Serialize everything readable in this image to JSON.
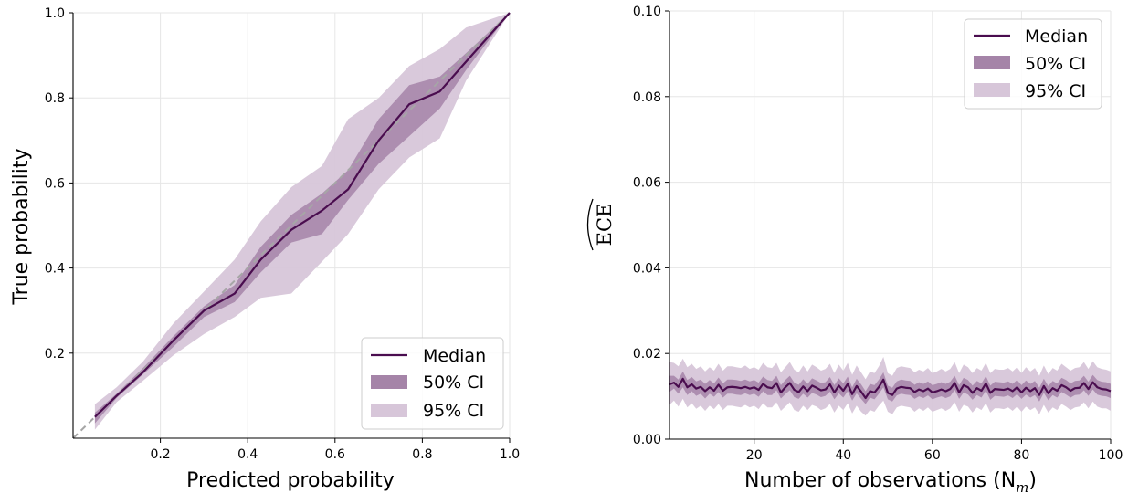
{
  "colors": {
    "median": "#4a0d4f",
    "ci50": "#a584a8",
    "ci95": "#d7c6d9",
    "diagonal": "#a6a6a6",
    "grid": "#e6e6e6"
  },
  "chart_data": [
    {
      "type": "line",
      "xlabel": "Predicted probability",
      "ylabel": "True probability",
      "xlim": [
        0.0,
        1.0
      ],
      "ylim": [
        0.0,
        1.0
      ],
      "xticks": [
        0.2,
        0.4,
        0.6,
        0.8,
        1.0
      ],
      "xtick_labels": [
        "0.2",
        "0.4",
        "0.6",
        "0.8",
        "1.0"
      ],
      "yticks": [
        0.2,
        0.4,
        0.6,
        0.8,
        1.0
      ],
      "ytick_labels": [
        "0.2",
        "0.4",
        "0.6",
        "0.8",
        "1.0"
      ],
      "grid": true,
      "legend_position": "bottom-right",
      "legend": [
        "Median",
        "50% CI",
        "95% CI"
      ],
      "diagonal": true,
      "x": [
        0.05,
        0.1,
        0.16,
        0.23,
        0.3,
        0.37,
        0.43,
        0.5,
        0.57,
        0.63,
        0.7,
        0.77,
        0.84,
        0.9,
        1.0
      ],
      "median": [
        0.05,
        0.1,
        0.155,
        0.23,
        0.3,
        0.34,
        0.42,
        0.49,
        0.535,
        0.585,
        0.7,
        0.785,
        0.815,
        0.885,
        1.0
      ],
      "ci50_lower": [
        0.035,
        0.095,
        0.15,
        0.215,
        0.285,
        0.32,
        0.39,
        0.46,
        0.48,
        0.56,
        0.645,
        0.71,
        0.775,
        0.865,
        1.0
      ],
      "ci50_upper": [
        0.06,
        0.105,
        0.165,
        0.24,
        0.31,
        0.36,
        0.45,
        0.525,
        0.575,
        0.63,
        0.75,
        0.83,
        0.85,
        0.905,
        1.0
      ],
      "ci95_lower": [
        0.02,
        0.085,
        0.135,
        0.195,
        0.245,
        0.285,
        0.33,
        0.34,
        0.415,
        0.48,
        0.585,
        0.66,
        0.705,
        0.84,
        1.0
      ],
      "ci95_upper": [
        0.08,
        0.12,
        0.18,
        0.27,
        0.345,
        0.42,
        0.51,
        0.59,
        0.64,
        0.75,
        0.8,
        0.875,
        0.915,
        0.965,
        1.0
      ]
    },
    {
      "type": "line",
      "xlabel": "Number of observations (N",
      "xlabel_sub": "m",
      "ylabel": "ECE",
      "xlim": [
        1,
        100
      ],
      "ylim": [
        0.0,
        0.1
      ],
      "xticks": [
        20,
        40,
        60,
        80,
        100
      ],
      "xtick_labels": [
        "20",
        "40",
        "60",
        "80",
        "100"
      ],
      "yticks": [
        0.0,
        0.02,
        0.04,
        0.06,
        0.08,
        0.1
      ],
      "ytick_labels": [
        "0.00",
        "0.02",
        "0.04",
        "0.06",
        "0.08",
        "0.10"
      ],
      "grid": true,
      "legend_position": "top-right",
      "legend": [
        "Median",
        "50% CI",
        "95% CI"
      ],
      "x_start": 1,
      "x_step": 1,
      "median": [
        0.0128,
        0.0132,
        0.0122,
        0.0141,
        0.0121,
        0.0128,
        0.0118,
        0.0122,
        0.0112,
        0.0121,
        0.0113,
        0.0127,
        0.0113,
        0.0121,
        0.0122,
        0.0121,
        0.0119,
        0.0122,
        0.0118,
        0.0121,
        0.0115,
        0.0129,
        0.0121,
        0.0119,
        0.0131,
        0.0109,
        0.0121,
        0.0131,
        0.0115,
        0.011,
        0.0123,
        0.0112,
        0.0125,
        0.012,
        0.0114,
        0.0116,
        0.0128,
        0.0109,
        0.0125,
        0.0113,
        0.0129,
        0.0105,
        0.0124,
        0.0111,
        0.0096,
        0.0112,
        0.0109,
        0.0122,
        0.0139,
        0.0108,
        0.0103,
        0.0118,
        0.0122,
        0.012,
        0.0119,
        0.011,
        0.0116,
        0.0112,
        0.0118,
        0.0109,
        0.0112,
        0.0116,
        0.0112,
        0.0117,
        0.0131,
        0.0109,
        0.0126,
        0.0121,
        0.0108,
        0.0119,
        0.0113,
        0.013,
        0.0108,
        0.0117,
        0.0116,
        0.0115,
        0.0118,
        0.0112,
        0.0121,
        0.0109,
        0.012,
        0.0112,
        0.0119,
        0.0103,
        0.0124,
        0.0107,
        0.0119,
        0.0113,
        0.0126,
        0.0121,
        0.0113,
        0.0119,
        0.012,
        0.0131,
        0.0117,
        0.0133,
        0.0121,
        0.0117,
        0.0116,
        0.0112
      ],
      "ci50_lower": [
        0.011,
        0.0118,
        0.0106,
        0.0121,
        0.0103,
        0.0112,
        0.0101,
        0.0106,
        0.0095,
        0.0106,
        0.0099,
        0.011,
        0.0097,
        0.0106,
        0.0106,
        0.0104,
        0.0103,
        0.0107,
        0.0103,
        0.0106,
        0.0099,
        0.0112,
        0.0103,
        0.0103,
        0.0114,
        0.0095,
        0.0105,
        0.0114,
        0.0098,
        0.0094,
        0.0106,
        0.0097,
        0.0108,
        0.0104,
        0.0098,
        0.0101,
        0.0111,
        0.0093,
        0.0107,
        0.0097,
        0.0112,
        0.009,
        0.0107,
        0.0094,
        0.0082,
        0.0097,
        0.0093,
        0.0106,
        0.0121,
        0.0093,
        0.0088,
        0.0102,
        0.0106,
        0.0104,
        0.0103,
        0.0094,
        0.01,
        0.0096,
        0.0102,
        0.0093,
        0.0097,
        0.01,
        0.0096,
        0.01,
        0.0115,
        0.0094,
        0.0109,
        0.0104,
        0.0092,
        0.0103,
        0.0097,
        0.0113,
        0.0092,
        0.0101,
        0.01,
        0.0099,
        0.0102,
        0.0096,
        0.0105,
        0.0094,
        0.0104,
        0.0097,
        0.0103,
        0.0088,
        0.0108,
        0.0091,
        0.0103,
        0.0097,
        0.011,
        0.0104,
        0.0097,
        0.0103,
        0.0104,
        0.0114,
        0.0101,
        0.0116,
        0.0104,
        0.0101,
        0.01,
        0.0096
      ],
      "ci50_upper": [
        0.0148,
        0.0148,
        0.0139,
        0.0158,
        0.0138,
        0.0145,
        0.0135,
        0.0139,
        0.0129,
        0.0138,
        0.013,
        0.0144,
        0.013,
        0.0139,
        0.0139,
        0.0138,
        0.0136,
        0.0139,
        0.0135,
        0.0138,
        0.0132,
        0.0146,
        0.0138,
        0.0136,
        0.0148,
        0.0126,
        0.0138,
        0.0148,
        0.0132,
        0.0127,
        0.014,
        0.0129,
        0.0142,
        0.0137,
        0.0131,
        0.0133,
        0.0145,
        0.0126,
        0.0142,
        0.013,
        0.0146,
        0.0121,
        0.0141,
        0.0128,
        0.0112,
        0.0129,
        0.0126,
        0.0139,
        0.0156,
        0.0125,
        0.012,
        0.0135,
        0.0139,
        0.0137,
        0.0136,
        0.0127,
        0.0133,
        0.0129,
        0.0135,
        0.0126,
        0.0129,
        0.0133,
        0.0129,
        0.0134,
        0.0148,
        0.0126,
        0.0143,
        0.0138,
        0.0125,
        0.0136,
        0.013,
        0.0147,
        0.0125,
        0.0134,
        0.0133,
        0.0132,
        0.0135,
        0.0129,
        0.0138,
        0.0126,
        0.0137,
        0.0129,
        0.0136,
        0.012,
        0.0141,
        0.0124,
        0.0136,
        0.013,
        0.0143,
        0.0138,
        0.013,
        0.0136,
        0.0137,
        0.0148,
        0.0134,
        0.015,
        0.0138,
        0.0134,
        0.0133,
        0.0129
      ],
      "ci95_lower": [
        0.008,
        0.009,
        0.0076,
        0.0094,
        0.0074,
        0.0084,
        0.0071,
        0.0078,
        0.0066,
        0.0078,
        0.007,
        0.0082,
        0.0068,
        0.0078,
        0.0078,
        0.0076,
        0.0074,
        0.008,
        0.0074,
        0.0078,
        0.007,
        0.0084,
        0.0074,
        0.0074,
        0.0086,
        0.0066,
        0.0076,
        0.0086,
        0.0068,
        0.0064,
        0.0078,
        0.0068,
        0.008,
        0.0076,
        0.0068,
        0.0072,
        0.0082,
        0.0062,
        0.0078,
        0.0068,
        0.0084,
        0.006,
        0.0078,
        0.0064,
        0.0055,
        0.0068,
        0.0064,
        0.0078,
        0.009,
        0.0064,
        0.0058,
        0.0074,
        0.0078,
        0.0076,
        0.0074,
        0.0064,
        0.0072,
        0.0066,
        0.0074,
        0.0064,
        0.0068,
        0.0072,
        0.0066,
        0.0072,
        0.0086,
        0.0064,
        0.008,
        0.0076,
        0.0062,
        0.0074,
        0.0068,
        0.0084,
        0.0062,
        0.0072,
        0.0072,
        0.007,
        0.0074,
        0.0066,
        0.0076,
        0.0064,
        0.0076,
        0.0068,
        0.0074,
        0.0058,
        0.008,
        0.0062,
        0.0074,
        0.0068,
        0.0082,
        0.0076,
        0.0068,
        0.0074,
        0.0076,
        0.0086,
        0.0072,
        0.0088,
        0.0076,
        0.0072,
        0.0072,
        0.0066
      ],
      "ci95_upper": [
        0.018,
        0.0178,
        0.017,
        0.0188,
        0.0168,
        0.0176,
        0.0164,
        0.017,
        0.0158,
        0.0168,
        0.016,
        0.0176,
        0.016,
        0.017,
        0.017,
        0.0168,
        0.0166,
        0.0172,
        0.0164,
        0.0168,
        0.0162,
        0.0178,
        0.0168,
        0.0166,
        0.0178,
        0.0156,
        0.0168,
        0.018,
        0.0162,
        0.0156,
        0.0172,
        0.0158,
        0.0174,
        0.0168,
        0.016,
        0.0164,
        0.0176,
        0.0154,
        0.0174,
        0.016,
        0.0178,
        0.015,
        0.0172,
        0.0156,
        0.014,
        0.0158,
        0.0154,
        0.017,
        0.0192,
        0.0154,
        0.0148,
        0.0166,
        0.017,
        0.0168,
        0.0166,
        0.0156,
        0.0162,
        0.0158,
        0.0166,
        0.0154,
        0.0158,
        0.0164,
        0.0158,
        0.0164,
        0.018,
        0.0154,
        0.0174,
        0.0168,
        0.0154,
        0.0166,
        0.016,
        0.0178,
        0.0154,
        0.0164,
        0.0162,
        0.0162,
        0.0166,
        0.0158,
        0.0168,
        0.0154,
        0.0168,
        0.0158,
        0.0166,
        0.0148,
        0.0172,
        0.0152,
        0.0166,
        0.016,
        0.0176,
        0.0168,
        0.016,
        0.0166,
        0.0168,
        0.018,
        0.0164,
        0.0182,
        0.0168,
        0.0164,
        0.0162,
        0.0158
      ]
    }
  ]
}
